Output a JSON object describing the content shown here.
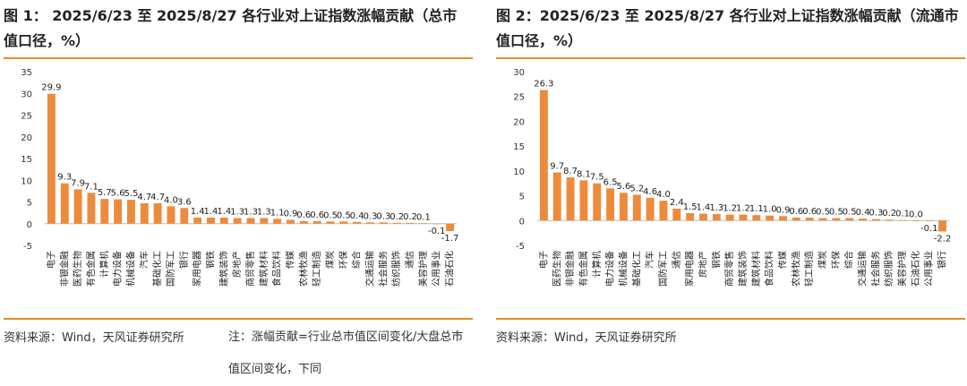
{
  "charts": [
    {
      "title": "图 1： 2025/6/23 至 2025/8/27 各行业对上证指数涨幅贡献（总市值口径，%）",
      "source": "资料来源：Wind，天风证券研究所",
      "note": "注：涨幅贡献=行业总市值区间变化/大盘总市值区间变化，下同"
    },
    {
      "title": "图 2：2025/6/23 至 2025/8/27 各行业对上证指数涨幅贡献（流通市值口径，%）",
      "source": "资料来源：Wind，天风证券研究所"
    }
  ],
  "chart_data": [
    {
      "type": "bar",
      "title": "图 1： 2025/6/23 至 2025/8/27 各行业对上证指数涨幅贡献（总市值口径，%）",
      "categories": [
        "电子",
        "非银金融",
        "医药生物",
        "有色金属",
        "计算机",
        "电力设备",
        "机械设备",
        "汽车",
        "基础化工",
        "国防军工",
        "银行",
        "家用电器",
        "钢铁",
        "建筑装饰",
        "房地产",
        "商贸零售",
        "建筑材料",
        "食品饮料",
        "传媒",
        "农林牧渔",
        "轻工制造",
        "煤炭",
        "环保",
        "综合",
        "交通运输",
        "社会服务",
        "纺织服饰",
        "通信",
        "美容护理",
        "公用事业",
        "石油石化"
      ],
      "values": [
        29.9,
        9.3,
        7.9,
        7.1,
        5.7,
        5.6,
        5.5,
        4.7,
        4.7,
        4.0,
        3.6,
        1.4,
        1.4,
        1.4,
        1.3,
        1.3,
        1.3,
        1.1,
        0.9,
        0.6,
        0.6,
        0.5,
        0.5,
        0.4,
        0.3,
        0.3,
        0.2,
        0.2,
        0.1,
        -0.1,
        -1.7
      ],
      "labels": [
        "29.9",
        "9.3",
        "7.9",
        "7.1",
        "5.7",
        "5.6",
        "5.5",
        "4.7",
        "4.7",
        "4.0",
        "3.6",
        "1.4",
        "1.4",
        "1.4",
        "1.3",
        "1.3",
        "1.3",
        "1.1",
        "0.9",
        "0.6",
        "0.6",
        "0.5",
        "0.5",
        "0.4",
        "0.3",
        "0.3",
        "0.2",
        "0.2",
        "0.1",
        "-0.1",
        "-1.7"
      ],
      "yticks": [
        -5,
        0,
        5,
        10,
        15,
        20,
        25,
        30,
        35
      ],
      "ylim": [
        -5,
        35
      ],
      "grid": false,
      "bar_color": "#ed8b3d"
    },
    {
      "type": "bar",
      "title": "图 2：2025/6/23 至 2025/8/27 各行业对上证指数涨幅贡献（流通市值口径，%）",
      "categories": [
        "电子",
        "医药生物",
        "非银金融",
        "有色金属",
        "计算机",
        "电力设备",
        "机械设备",
        "基础化工",
        "汽车",
        "国防军工",
        "通信",
        "家用电器",
        "房地产",
        "钢铁",
        "商贸零售",
        "建筑装饰",
        "建筑材料",
        "食品饮料",
        "传媒",
        "农林牧渔",
        "轻工制造",
        "煤炭",
        "环保",
        "综合",
        "交通运输",
        "社会服务",
        "纺织服饰",
        "美容护理",
        "石油石化",
        "公用事业",
        "银行"
      ],
      "values": [
        26.3,
        9.7,
        8.7,
        8.1,
        7.5,
        6.5,
        5.6,
        5.2,
        4.6,
        4.0,
        2.4,
        1.5,
        1.4,
        1.3,
        1.2,
        1.2,
        1.1,
        1.0,
        0.9,
        0.6,
        0.6,
        0.5,
        0.5,
        0.5,
        0.4,
        0.3,
        0.2,
        0.1,
        0.0,
        -0.1,
        -2.2
      ],
      "labels": [
        "26.3",
        "9.7",
        "8.7",
        "8.1",
        "7.5",
        "6.5",
        "5.6",
        "5.2",
        "4.6",
        "4.0",
        "2.4",
        "1.5",
        "1.4",
        "1.3",
        "1.2",
        "1.2",
        "1.1",
        "1.0",
        "0.9",
        "0.6",
        "0.6",
        "0.5",
        "0.5",
        "0.5",
        "0.4",
        "0.3",
        "0.2",
        "0.1",
        "0.0",
        "-0.1",
        "-2.2"
      ],
      "yticks": [
        -5,
        0,
        5,
        10,
        15,
        20,
        25,
        30
      ],
      "ylim": [
        -5,
        30
      ],
      "grid": false,
      "bar_color": "#ed8b3d"
    }
  ]
}
